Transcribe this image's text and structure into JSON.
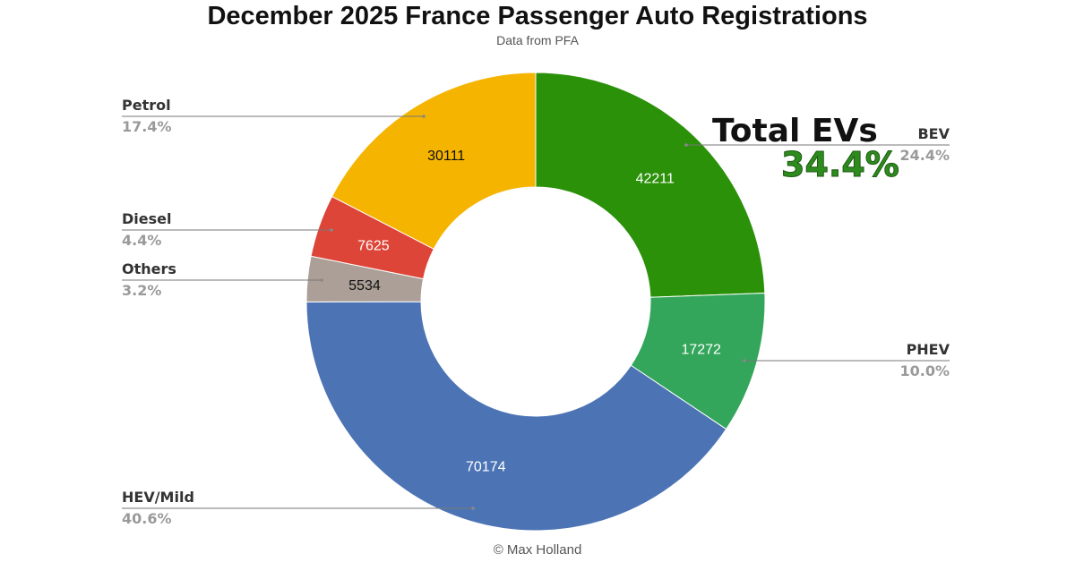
{
  "chart_data": {
    "type": "pie",
    "donut": true,
    "title": "December 2025 France Passenger Auto Registrations",
    "subtitle": "Data from PFA",
    "credit": "© Max Holland",
    "slices": [
      {
        "name": "BEV",
        "value": 42211,
        "value_label": "42211",
        "percent_label": "24.4%",
        "color": "#2a9109",
        "text_color": "#ffffff"
      },
      {
        "name": "PHEV",
        "value": 17272,
        "value_label": "17272",
        "percent_label": "10.0%",
        "color": "#33a65b",
        "text_color": "#ffffff"
      },
      {
        "name": "HEV/Mild",
        "value": 70174,
        "value_label": "70174",
        "percent_label": "40.6%",
        "color": "#4c74b5",
        "text_color": "#ffffff"
      },
      {
        "name": "Others",
        "value": 5534,
        "value_label": "5534",
        "percent_label": "3.2%",
        "color": "#ab9f97",
        "text_color": "#111111"
      },
      {
        "name": "Diesel",
        "value": 7625,
        "value_label": "7625",
        "percent_label": "4.4%",
        "color": "#dd4538",
        "text_color": "#ffffff"
      },
      {
        "name": "Petrol",
        "value": 30111,
        "value_label": "30111",
        "percent_label": "17.4%",
        "color": "#f4b400",
        "text_color": "#111111"
      }
    ],
    "callout": {
      "title": "Total EVs",
      "value": "34.4%",
      "color": "#2e8b1e"
    }
  }
}
